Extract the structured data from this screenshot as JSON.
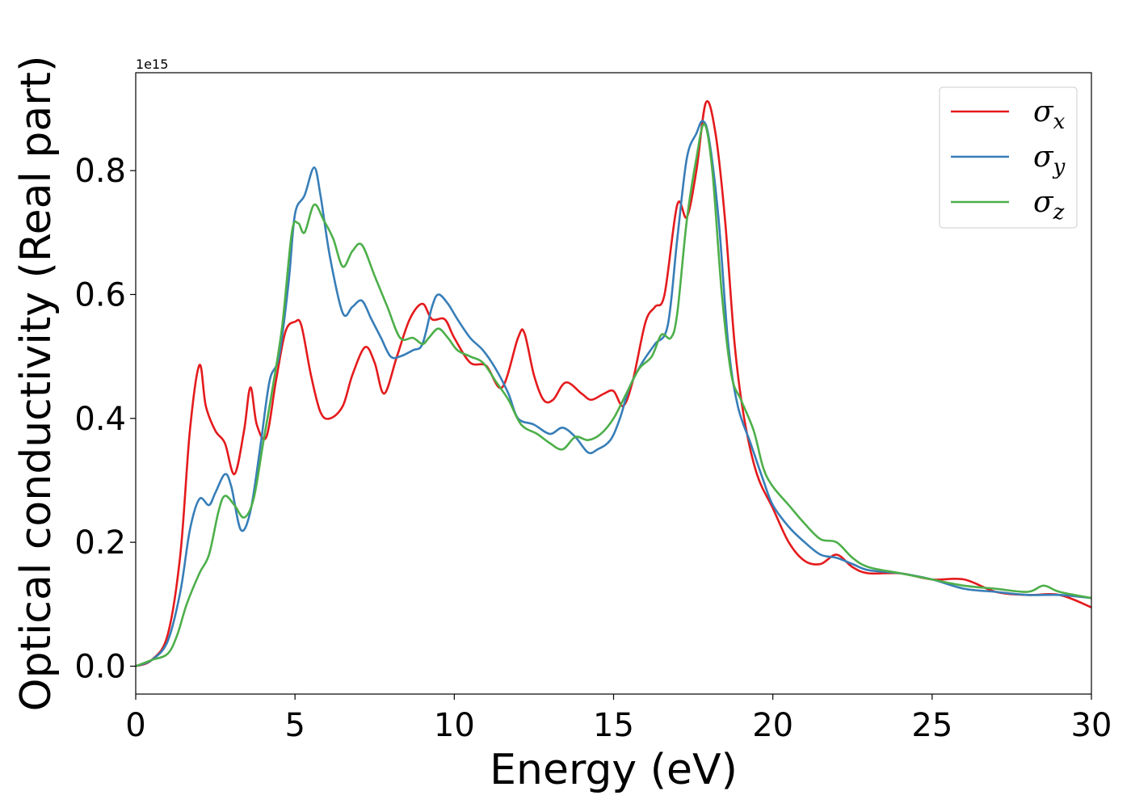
{
  "chart_data": {
    "type": "line",
    "xlabel": "Energy (eV)",
    "ylabel": "Optical conductivity (Real part)",
    "offset_text": "1e15",
    "xlim": [
      0,
      30
    ],
    "ylim": [
      -0.045,
      0.958
    ],
    "xticks": [
      0,
      5,
      10,
      15,
      20,
      25,
      30
    ],
    "xtick_labels": [
      "0",
      "5",
      "10",
      "15",
      "20",
      "25",
      "30"
    ],
    "yticks": [
      0.0,
      0.2,
      0.4,
      0.6,
      0.8
    ],
    "ytick_labels": [
      "0.0",
      "0.2",
      "0.4",
      "0.6",
      "0.8"
    ],
    "grid": false,
    "legend_position": "top-right",
    "series": [
      {
        "name": "σx",
        "name_symbol": "σ",
        "name_subscript": "x",
        "color": "#e41a1c",
        "x": [
          0,
          0.5,
          1,
          1.4,
          1.7,
          2,
          2.2,
          2.5,
          2.8,
          3.1,
          3.4,
          3.6,
          3.8,
          4.1,
          4.4,
          4.7,
          5,
          5.2,
          5.5,
          5.8,
          6.1,
          6.5,
          6.8,
          7.2,
          7.5,
          7.8,
          8.2,
          8.6,
          9,
          9.3,
          9.7,
          10,
          10.5,
          11,
          11.5,
          12,
          12.2,
          12.5,
          12.8,
          13.1,
          13.5,
          14,
          14.3,
          14.7,
          15,
          15.3,
          15.6,
          16,
          16.3,
          16.6,
          17,
          17.3,
          17.6,
          17.9,
          18.2,
          18.5,
          18.8,
          19.1,
          19.5,
          20,
          20.5,
          21,
          21.5,
          22,
          22.5,
          23,
          24,
          25,
          26,
          27,
          28,
          29,
          30
        ],
        "values": [
          0,
          0.01,
          0.05,
          0.18,
          0.38,
          0.486,
          0.42,
          0.38,
          0.36,
          0.31,
          0.38,
          0.45,
          0.39,
          0.37,
          0.46,
          0.54,
          0.556,
          0.55,
          0.47,
          0.41,
          0.4,
          0.42,
          0.47,
          0.515,
          0.49,
          0.44,
          0.5,
          0.56,
          0.585,
          0.56,
          0.56,
          0.53,
          0.49,
          0.485,
          0.45,
          0.53,
          0.538,
          0.47,
          0.43,
          0.43,
          0.458,
          0.44,
          0.43,
          0.44,
          0.444,
          0.42,
          0.46,
          0.555,
          0.58,
          0.6,
          0.745,
          0.725,
          0.8,
          0.91,
          0.86,
          0.72,
          0.52,
          0.4,
          0.31,
          0.255,
          0.2,
          0.17,
          0.165,
          0.18,
          0.16,
          0.15,
          0.15,
          0.14,
          0.14,
          0.12,
          0.115,
          0.115,
          0.095
        ]
      },
      {
        "name": "σy",
        "name_symbol": "σ",
        "name_subscript": "y",
        "color": "#377eb8",
        "x": [
          0,
          0.5,
          1,
          1.4,
          1.7,
          2,
          2.3,
          2.5,
          2.8,
          3,
          3.3,
          3.6,
          3.9,
          4.2,
          4.5,
          4.8,
          5,
          5.3,
          5.6,
          5.8,
          6.1,
          6.5,
          6.8,
          7.1,
          7.4,
          7.7,
          8,
          8.3,
          8.7,
          9,
          9.3,
          9.5,
          9.8,
          10.1,
          10.5,
          10.9,
          11.3,
          11.7,
          12,
          12.5,
          13,
          13.4,
          13.8,
          14.2,
          14.5,
          14.9,
          15.2,
          15.5,
          15.9,
          16.3,
          16.7,
          17,
          17.3,
          17.6,
          17.8,
          18,
          18.3,
          18.6,
          18.9,
          19.3,
          19.7,
          20,
          20.5,
          21,
          21.5,
          22,
          22.5,
          23,
          24,
          25,
          26,
          27,
          28,
          29,
          30
        ],
        "values": [
          0,
          0.01,
          0.04,
          0.12,
          0.22,
          0.27,
          0.26,
          0.28,
          0.31,
          0.29,
          0.22,
          0.25,
          0.35,
          0.46,
          0.5,
          0.62,
          0.73,
          0.76,
          0.805,
          0.76,
          0.66,
          0.57,
          0.58,
          0.59,
          0.56,
          0.53,
          0.5,
          0.5,
          0.51,
          0.52,
          0.58,
          0.6,
          0.585,
          0.56,
          0.53,
          0.51,
          0.48,
          0.44,
          0.4,
          0.39,
          0.375,
          0.385,
          0.37,
          0.345,
          0.35,
          0.365,
          0.4,
          0.45,
          0.49,
          0.52,
          0.55,
          0.69,
          0.82,
          0.86,
          0.88,
          0.85,
          0.72,
          0.52,
          0.42,
          0.36,
          0.3,
          0.26,
          0.225,
          0.2,
          0.18,
          0.175,
          0.165,
          0.155,
          0.15,
          0.14,
          0.125,
          0.12,
          0.115,
          0.115,
          0.11
        ]
      },
      {
        "name": "σz",
        "name_symbol": "σ",
        "name_subscript": "z",
        "color": "#4daf4a",
        "x": [
          0,
          0.5,
          1,
          1.3,
          1.6,
          2,
          2.3,
          2.6,
          2.8,
          3.1,
          3.4,
          3.7,
          4,
          4.3,
          4.6,
          4.9,
          5.1,
          5.3,
          5.6,
          5.9,
          6.2,
          6.5,
          6.8,
          7.1,
          7.5,
          7.9,
          8.3,
          8.7,
          9,
          9.2,
          9.5,
          9.8,
          10.1,
          10.5,
          10.9,
          11.3,
          11.7,
          12.1,
          12.6,
          13,
          13.4,
          13.8,
          14.2,
          14.6,
          15,
          15.4,
          15.8,
          16.2,
          16.5,
          16.8,
          17,
          17.3,
          17.6,
          17.85,
          18.1,
          18.4,
          18.7,
          19,
          19.4,
          19.7,
          20,
          20.5,
          21,
          21.5,
          22,
          22.5,
          23,
          24,
          25,
          26,
          27,
          28,
          28.5,
          29,
          30
        ],
        "values": [
          0,
          0.01,
          0.02,
          0.05,
          0.1,
          0.15,
          0.18,
          0.25,
          0.275,
          0.26,
          0.24,
          0.27,
          0.36,
          0.45,
          0.55,
          0.7,
          0.715,
          0.7,
          0.745,
          0.72,
          0.69,
          0.645,
          0.67,
          0.68,
          0.63,
          0.58,
          0.53,
          0.53,
          0.52,
          0.53,
          0.545,
          0.53,
          0.51,
          0.5,
          0.49,
          0.46,
          0.43,
          0.39,
          0.375,
          0.36,
          0.35,
          0.37,
          0.365,
          0.375,
          0.4,
          0.44,
          0.48,
          0.5,
          0.535,
          0.53,
          0.57,
          0.72,
          0.82,
          0.875,
          0.8,
          0.6,
          0.47,
          0.43,
          0.38,
          0.32,
          0.29,
          0.26,
          0.23,
          0.205,
          0.2,
          0.175,
          0.16,
          0.15,
          0.14,
          0.13,
          0.125,
          0.12,
          0.13,
          0.12,
          0.11
        ]
      }
    ]
  }
}
